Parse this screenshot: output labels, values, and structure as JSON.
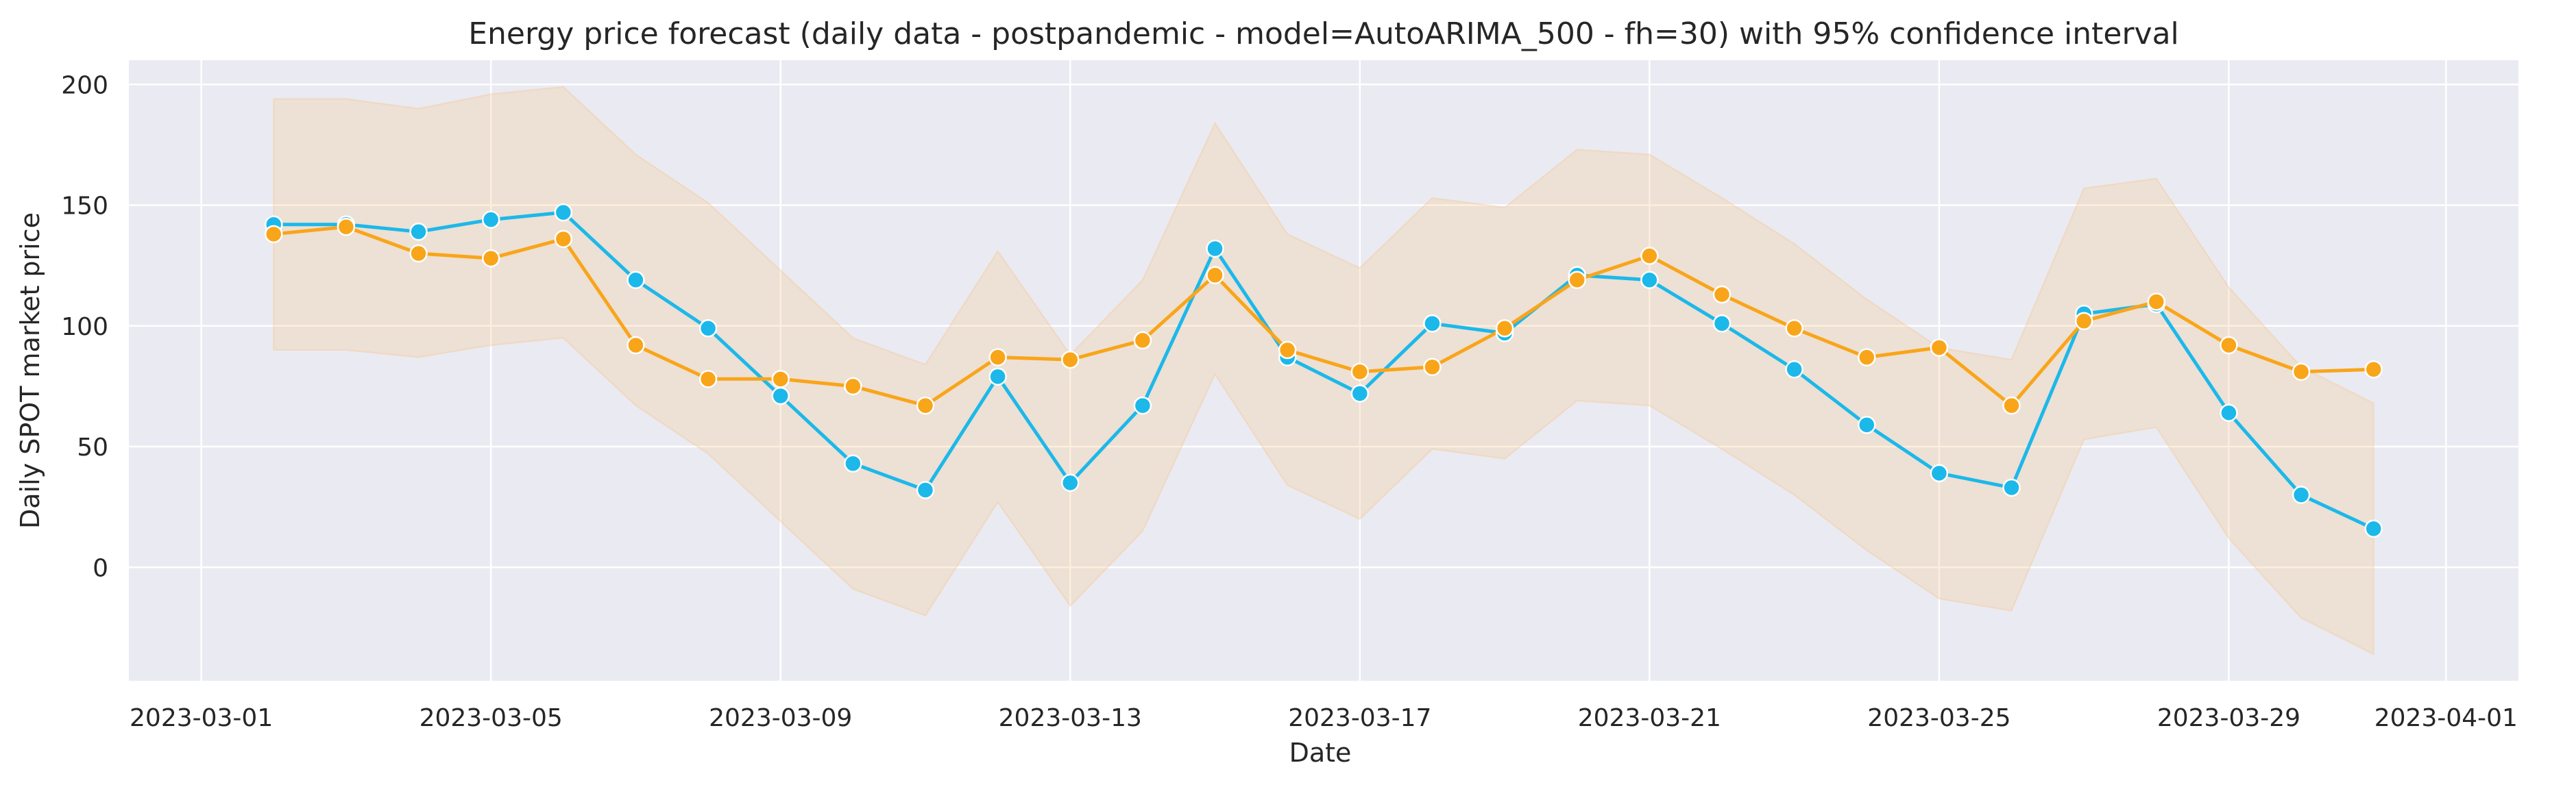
{
  "chart_data": {
    "type": "line",
    "title": "Energy price forecast (daily data - postpandemic - model=AutoARIMA_500 - fh=30) with 95% confidence interval",
    "xlabel": "Date",
    "ylabel": "Daily SPOT market price",
    "xlim": [
      "2023-02-28",
      "2023-04-02"
    ],
    "ylim": [
      -47,
      210
    ],
    "x_ticks": [
      "2023-03-01",
      "2023-03-05",
      "2023-03-09",
      "2023-03-13",
      "2023-03-17",
      "2023-03-21",
      "2023-03-25",
      "2023-03-29",
      "2023-04-01"
    ],
    "y_ticks": [
      0,
      50,
      100,
      150,
      200
    ],
    "grid": true,
    "background_color": "#eaeaf2",
    "x": [
      "2023-03-02",
      "2023-03-03",
      "2023-03-04",
      "2023-03-05",
      "2023-03-06",
      "2023-03-07",
      "2023-03-08",
      "2023-03-09",
      "2023-03-10",
      "2023-03-11",
      "2023-03-12",
      "2023-03-13",
      "2023-03-14",
      "2023-03-15",
      "2023-03-16",
      "2023-03-17",
      "2023-03-18",
      "2023-03-19",
      "2023-03-20",
      "2023-03-21",
      "2023-03-22",
      "2023-03-23",
      "2023-03-24",
      "2023-03-25",
      "2023-03-26",
      "2023-03-27",
      "2023-03-28",
      "2023-03-29",
      "2023-03-30",
      "2023-03-31"
    ],
    "series": [
      {
        "color": "#1cb8ea",
        "values": [
          142,
          142,
          139,
          144,
          147,
          119,
          99,
          71,
          43,
          32,
          79,
          35,
          67,
          132,
          87,
          72,
          101,
          97,
          121,
          119,
          101,
          82,
          59,
          39,
          33,
          105,
          109,
          64,
          30,
          16
        ]
      },
      {
        "color": "#f9a51a",
        "values": [
          138,
          141,
          130,
          128,
          136,
          92,
          78,
          78,
          75,
          67,
          87,
          86,
          94,
          121,
          90,
          81,
          83,
          99,
          119,
          129,
          113,
          99,
          87,
          91,
          67,
          102,
          110,
          92,
          81,
          82
        ]
      }
    ],
    "confidence_band": {
      "color": "#f5c48a",
      "lower": [
        90,
        90,
        87,
        92,
        95,
        67,
        47,
        19,
        -9,
        -20,
        27,
        -16,
        15,
        80,
        34,
        20,
        49,
        45,
        69,
        67,
        49,
        30,
        7,
        -13,
        -18,
        53,
        58,
        12,
        -21,
        -36
      ],
      "upper": [
        194,
        194,
        190,
        196,
        199,
        171,
        151,
        123,
        95,
        84,
        131,
        88,
        119,
        184,
        138,
        124,
        153,
        149,
        173,
        171,
        153,
        134,
        111,
        91,
        86,
        157,
        161,
        116,
        83,
        68
      ]
    }
  }
}
